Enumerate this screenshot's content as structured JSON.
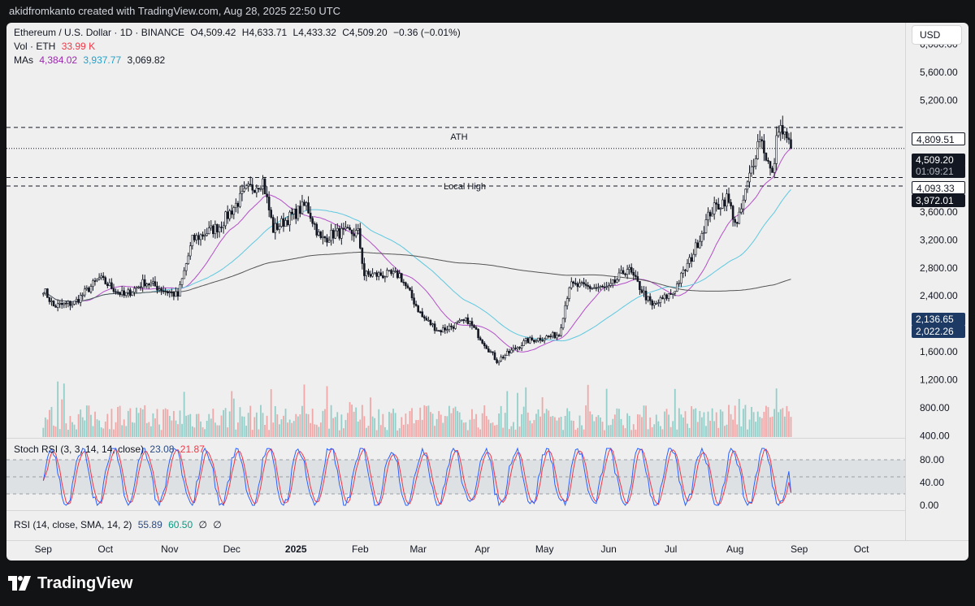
{
  "header": {
    "attribution": "akidfromkanto created with TradingView.com, Aug 28, 2025 22:50 UTC"
  },
  "legend": {
    "symbol": "Ethereum / U.S. Dollar · 1D · BINANCE",
    "open": "O4,509.42",
    "high": "H4,633.71",
    "low": "L4,433.32",
    "close": "C4,509.20",
    "change": "−0.36 (−0.01%)",
    "vol_label": "Vol · ETH",
    "vol_value": "33.99 K",
    "mas_label": "MAs",
    "ma1": "4,384.02",
    "ma2": "3,937.77",
    "ma3": "3,069.82"
  },
  "currency": "USD",
  "price_labels": {
    "ath_value": "4,809.51",
    "last_price": "4,509.20",
    "countdown": "01:09:21",
    "upper_level": "4,093.33",
    "lower_level": "3,972.01",
    "vol_a": "2,136.65",
    "vol_b": "2,022.26"
  },
  "annotations": {
    "ath": "ATH",
    "local_high": "Local High"
  },
  "stoch": {
    "label": "Stoch RSI (3, 3, 14, 14, close)",
    "k": "23.08",
    "d": "21.87"
  },
  "rsi": {
    "label": "RSI (14, close, SMA, 14, 2)",
    "value": "55.89",
    "sma": "60.50",
    "extra1": "∅",
    "extra2": "∅"
  },
  "colors": {
    "up": "#26a69a",
    "down": "#ef5350",
    "ma_fast": "#b44fc9",
    "ma_mid": "#5ec8e0",
    "ma_slow": "#555555",
    "stoch_k": "#2962ff",
    "stoch_d": "#f23645"
  },
  "logo_text": "TradingView",
  "chart_data": {
    "type": "candlestick",
    "title": "Ethereum / U.S. Dollar · 1D · BINANCE",
    "x_ticks": [
      "Sep",
      "Oct",
      "Nov",
      "Dec",
      "2025",
      "Feb",
      "Mar",
      "Apr",
      "May",
      "Jun",
      "Jul",
      "Aug",
      "Sep",
      "Oct"
    ],
    "y_ticks": [
      "6,000.00",
      "5,600.00",
      "5,200.00",
      "3,600.00",
      "3,200.00",
      "2,800.00",
      "2,400.00",
      "1,600.00",
      "1,200.00",
      "800.00",
      "400.00"
    ],
    "ylim": [
      380,
      6250
    ],
    "horizontal_levels": [
      {
        "name": "ATH",
        "value": 4809.51
      },
      {
        "name": "",
        "value": 4093.33
      },
      {
        "name": "Local High",
        "value": 3972.01
      }
    ],
    "last_price": 4509.2,
    "price_anchors": [
      [
        "2024-09-01",
        2500
      ],
      [
        "2024-09-06",
        2250
      ],
      [
        "2024-09-16",
        2300
      ],
      [
        "2024-09-28",
        2650
      ],
      [
        "2024-10-10",
        2400
      ],
      [
        "2024-10-20",
        2600
      ],
      [
        "2024-11-05",
        2400
      ],
      [
        "2024-11-12",
        3200
      ],
      [
        "2024-11-25",
        3400
      ],
      [
        "2024-12-08",
        3900
      ],
      [
        "2024-12-16",
        4050
      ],
      [
        "2024-12-21",
        3350
      ],
      [
        "2025-01-06",
        3700
      ],
      [
        "2025-01-13",
        3200
      ],
      [
        "2025-01-20",
        3300
      ],
      [
        "2025-01-31",
        3300
      ],
      [
        "2025-02-03",
        2700
      ],
      [
        "2025-02-20",
        2700
      ],
      [
        "2025-03-03",
        2100
      ],
      [
        "2025-03-11",
        1900
      ],
      [
        "2025-03-25",
        2050
      ],
      [
        "2025-04-08",
        1470
      ],
      [
        "2025-04-22",
        1750
      ],
      [
        "2025-05-08",
        1850
      ],
      [
        "2025-05-13",
        2550
      ],
      [
        "2025-06-01",
        2500
      ],
      [
        "2025-06-10",
        2800
      ],
      [
        "2025-06-22",
        2250
      ],
      [
        "2025-07-02",
        2450
      ],
      [
        "2025-07-11",
        2950
      ],
      [
        "2025-07-20",
        3600
      ],
      [
        "2025-07-28",
        3800
      ],
      [
        "2025-08-02",
        3400
      ],
      [
        "2025-08-13",
        4700
      ],
      [
        "2025-08-19",
        4100
      ],
      [
        "2025-08-22",
        4850
      ],
      [
        "2025-08-28",
        4509.2
      ]
    ],
    "moving_averages": {
      "ma_fast_last": 4384.02,
      "ma_mid_last": 3937.77,
      "ma_slow_last": 3069.82
    },
    "stoch_rsi": {
      "ylim": [
        0,
        100
      ],
      "ticks": [
        "80.00",
        "40.00",
        "0.00"
      ],
      "bands": [
        80,
        50,
        20
      ],
      "k_last": 23.08,
      "d_last": 21.87
    },
    "rsi": {
      "value": 55.89,
      "sma": 60.5
    }
  }
}
